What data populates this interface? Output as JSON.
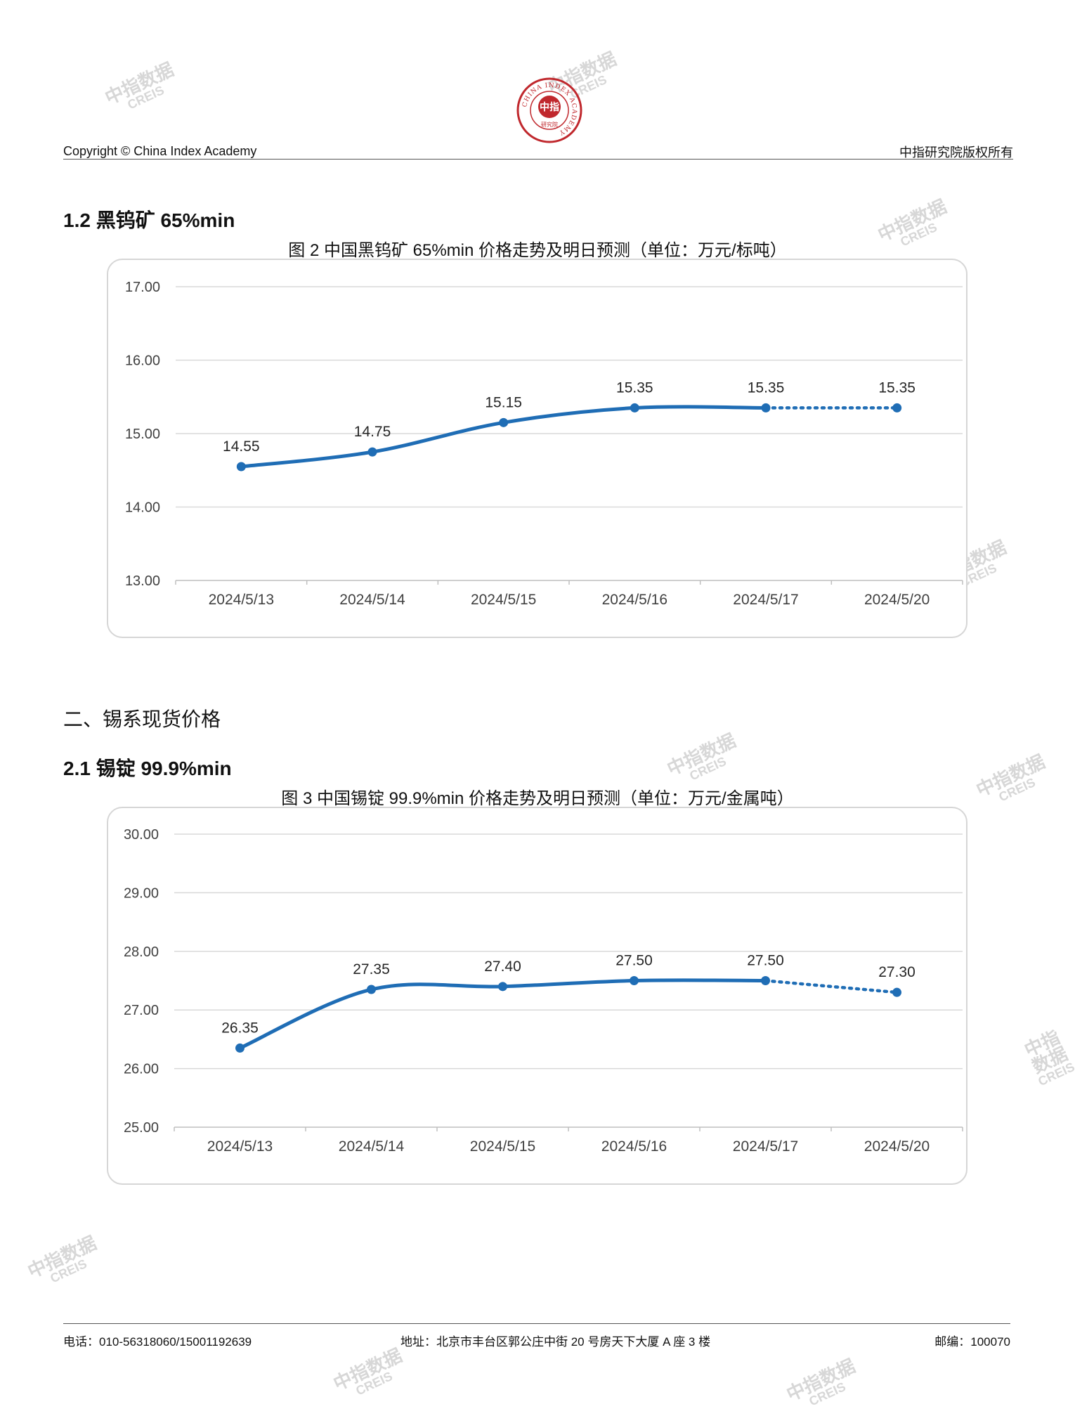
{
  "header": {
    "copyright": "Copyright © China Index Academy",
    "rights": "中指研究院版权所有",
    "logo": {
      "ring_text": "CHINA INDEX ACADEMY",
      "center_text": "中指",
      "bottom_text": "研究院",
      "color": "#c0282d"
    }
  },
  "watermark": {
    "line1": "中指数据",
    "line2": "CREIS"
  },
  "section_1_2": {
    "title": "1.2 黑钨矿 65%min"
  },
  "chapter_2": {
    "title": "二、锡系现货价格"
  },
  "section_2_1": {
    "title": "2.1 锡锭 99.9%min"
  },
  "chart_data": [
    {
      "type": "line",
      "title": "图 2 中国黑钨矿 65%min 价格走势及明日预测（单位：万元/标吨）",
      "categories": [
        "2024/5/13",
        "2024/5/14",
        "2024/5/15",
        "2024/5/16",
        "2024/5/17",
        "2024/5/20"
      ],
      "values": [
        14.55,
        14.75,
        15.15,
        15.35,
        15.35,
        15.35
      ],
      "value_labels": [
        "14.55",
        "14.75",
        "15.15",
        "15.35",
        "15.35",
        "15.35"
      ],
      "forecast_from_index": 4,
      "ylim": [
        13,
        17
      ],
      "yticks": [
        "13.00",
        "14.00",
        "15.00",
        "16.00",
        "17.00"
      ],
      "grid": true,
      "line_color": "#1f6db5"
    },
    {
      "type": "line",
      "title": "图 3 中国锡锭 99.9%min 价格走势及明日预测（单位：万元/金属吨）",
      "categories": [
        "2024/5/13",
        "2024/5/14",
        "2024/5/15",
        "2024/5/16",
        "2024/5/17",
        "2024/5/20"
      ],
      "values": [
        26.35,
        27.35,
        27.4,
        27.5,
        27.5,
        27.3
      ],
      "value_labels": [
        "26.35",
        "27.35",
        "27.40",
        "27.50",
        "27.50",
        "27.30"
      ],
      "forecast_from_index": 4,
      "ylim": [
        25,
        30
      ],
      "yticks": [
        "25.00",
        "26.00",
        "27.00",
        "28.00",
        "29.00",
        "30.00"
      ],
      "grid": true,
      "line_color": "#1f6db5"
    }
  ],
  "footer": {
    "phone": "电话：010-56318060/15001192639",
    "address": "地址：北京市丰台区郭公庄中街 20 号房天下大厦 A 座 3 楼",
    "postcode": "邮编：100070"
  }
}
